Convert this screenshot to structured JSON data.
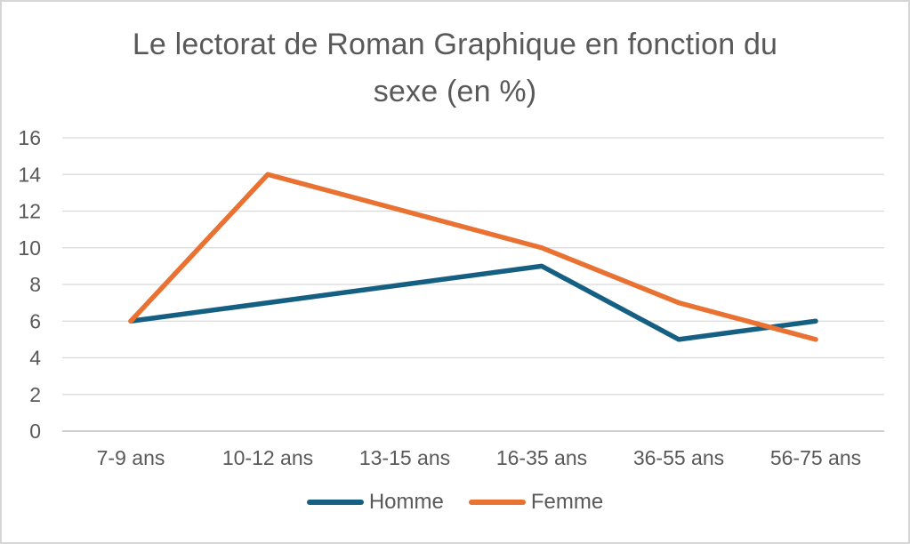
{
  "window": {
    "background": "#ffffff",
    "border_color": "#d6d6d6"
  },
  "text_color": "#595959",
  "grid_color": "#d9d9d9",
  "axis_line_color": "#bfbfbf",
  "title_lines": [
    "Le lectorat de Roman Graphique en fonction du",
    "sexe (en %)"
  ],
  "chart_data": {
    "type": "line",
    "title": "Le lectorat de Roman Graphique en fonction du sexe (en %)",
    "categories": [
      "7-9 ans",
      "10-12 ans",
      "13-15 ans",
      "16-35 ans",
      "36-55 ans",
      "56-75 ans"
    ],
    "series": [
      {
        "name": "Homme",
        "color": "#156082",
        "values": [
          6,
          7,
          8,
          9,
          5,
          6
        ]
      },
      {
        "name": "Femme",
        "color": "#E97132",
        "values": [
          6,
          14,
          12,
          10,
          7,
          5
        ]
      }
    ],
    "xlabel": "",
    "ylabel": "",
    "ylim": [
      0,
      16
    ],
    "ytick_step": 2,
    "yticks": [
      0,
      2,
      4,
      6,
      8,
      10,
      12,
      14,
      16
    ],
    "grid": "horizontal",
    "legend_position": "bottom"
  }
}
